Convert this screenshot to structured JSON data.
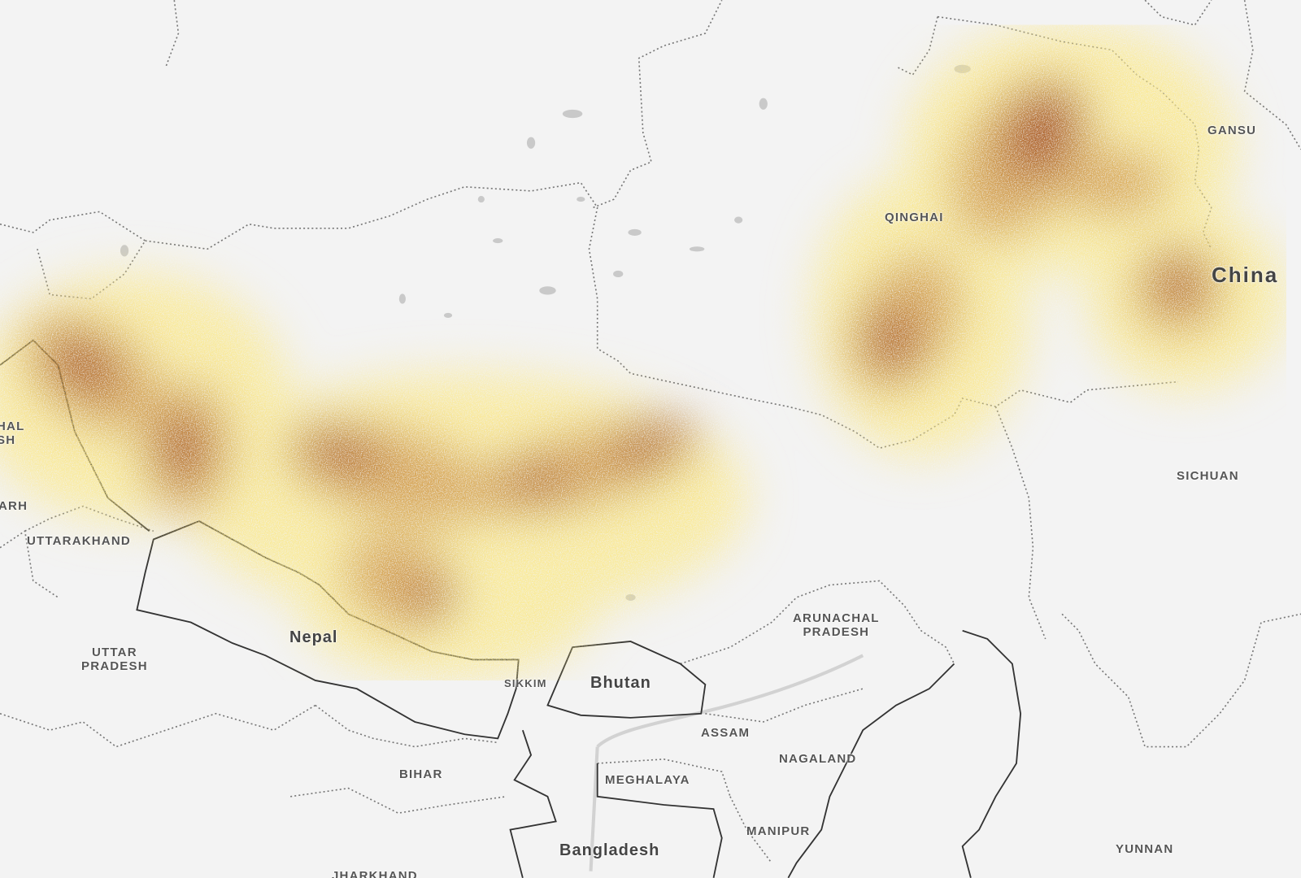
{
  "map": {
    "type": "density heatmap overlay on base map",
    "colors": {
      "background": "#f3f3f3",
      "low": "#fbe98a",
      "mid": "#d19a4a",
      "high": "#9b3a12",
      "border": "#333333",
      "water": "#c9c9c9"
    },
    "labels": {
      "gansu": "GANSU",
      "qinghai": "QINGHAI",
      "china": "China",
      "sichuan": "SICHUAN",
      "himachal": "HAL\nSH",
      "haryana": "ARH",
      "uttarakhand": "UTTARAKHAND",
      "uttar_pradesh": "UTTAR\nPRADESH",
      "nepal": "Nepal",
      "sikkim": "SIKKIM",
      "bhutan": "Bhutan",
      "arunachal": "ARUNACHAL\nPRADESH",
      "assam": "ASSAM",
      "nagaland": "NAGALAND",
      "meghalaya": "MEGHALAYA",
      "manipur": "MANIPUR",
      "bangladesh": "Bangladesh",
      "bihar": "BIHAR",
      "jharkhand": "JHARKHAND",
      "yunnan": "YUNNAN"
    }
  }
}
